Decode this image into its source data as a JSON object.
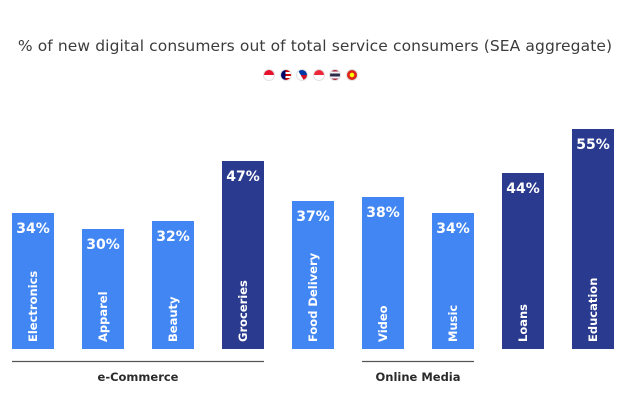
{
  "chart_data": {
    "type": "bar",
    "title": "% of new digital consumers out of total service consumers (SEA aggregate)",
    "categories": [
      "Electronics",
      "Apparel",
      "Beauty",
      "Groceries",
      "Food Delivery",
      "Video",
      "Music",
      "Loans",
      "Education"
    ],
    "values": [
      34,
      30,
      32,
      47,
      37,
      38,
      34,
      44,
      55
    ],
    "value_labels": [
      "34%",
      "30%",
      "32%",
      "47%",
      "37%",
      "38%",
      "34%",
      "44%",
      "55%"
    ],
    "highlighted": [
      false,
      false,
      false,
      true,
      false,
      false,
      false,
      true,
      true
    ],
    "groups": [
      {
        "label": "e-Commerce",
        "from": 0,
        "to": 3
      },
      {
        "label": "Online Media",
        "from": 5,
        "to": 6
      }
    ],
    "ylim": [
      0,
      55
    ],
    "xlabel": "",
    "ylabel": "",
    "grid": false,
    "legend": "none"
  },
  "colors": {
    "bar": "#4286f4",
    "highlight": "#2a3a8e",
    "label": "#ffffff",
    "group_line": "#555555",
    "group_text": "#2b2b2b"
  },
  "flags": [
    {
      "name": "indonesia-flag-icon",
      "colors": [
        "#e8112d",
        "#ffffff"
      ]
    },
    {
      "name": "malaysia-flag-icon",
      "colors": [
        "#cc0001",
        "#ffffff",
        "#010066",
        "#ffcc00"
      ]
    },
    {
      "name": "philippines-flag-icon",
      "colors": [
        "#0038a8",
        "#ce1126",
        "#ffffff",
        "#fcd116"
      ]
    },
    {
      "name": "singapore-flag-icon",
      "colors": [
        "#ed2939",
        "#ffffff"
      ]
    },
    {
      "name": "thailand-flag-icon",
      "colors": [
        "#a51931",
        "#f4f5f8",
        "#2d2a4a"
      ]
    },
    {
      "name": "vietnam-flag-icon",
      "colors": [
        "#da251d",
        "#ffff00"
      ]
    }
  ]
}
